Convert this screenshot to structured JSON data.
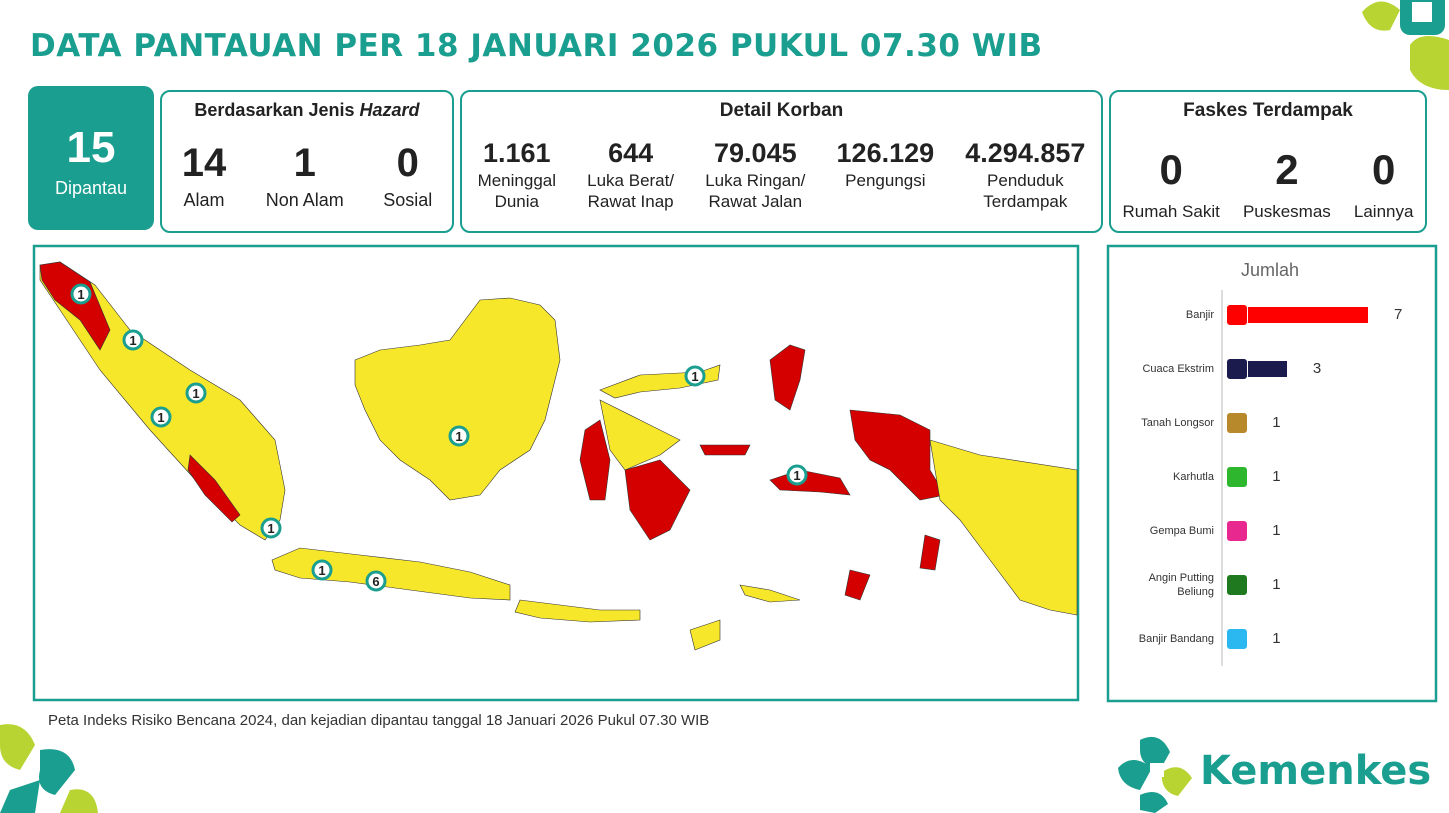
{
  "header": {
    "title": "DATA PANTAUAN PER 18 JANUARI 2026 PUKUL 07.30 WIB"
  },
  "monitored": {
    "value": 15,
    "label": "Dipantau"
  },
  "hazard": {
    "title_prefix": "Berdasarkan Jenis",
    "title_emphasis": "Hazard",
    "items": [
      {
        "value": 14,
        "label": "Alam"
      },
      {
        "value": 1,
        "label": "Non Alam"
      },
      {
        "value": 0,
        "label": "Sosial"
      }
    ]
  },
  "casualties": {
    "title": "Detail Korban",
    "items": [
      {
        "value": "1.161",
        "label_lines": [
          "Meninggal",
          "Dunia"
        ]
      },
      {
        "value": "644",
        "label_lines": [
          "Luka Berat/",
          "Rawat Inap"
        ]
      },
      {
        "value": "79.045",
        "label_lines": [
          "Luka Ringan/",
          "Rawat Jalan"
        ]
      },
      {
        "value": "126.129",
        "label_lines": [
          "Pengungsi"
        ]
      },
      {
        "value": "4.294.857",
        "label_lines": [
          "Penduduk",
          "Terdampak"
        ]
      }
    ]
  },
  "facilities": {
    "title": "Faskes Terdampak",
    "items": [
      {
        "value": 0,
        "label": "Rumah Sakit"
      },
      {
        "value": 2,
        "label": "Puskesmas"
      },
      {
        "value": 0,
        "label": "Lainnya"
      }
    ]
  },
  "map": {
    "markers": [
      1,
      1,
      1,
      1,
      1,
      1,
      1,
      1,
      1,
      6
    ]
  },
  "chart_data": {
    "type": "bar",
    "orientation": "horizontal",
    "title": "Jumlah",
    "categories": [
      "Banjir",
      "Cuaca Ekstrim",
      "Tanah Longsor",
      "Karhutla",
      "Gempa Bumi",
      "Angin Putting Beliung",
      "Banjir Bandang"
    ],
    "values": [
      7,
      3,
      1,
      1,
      1,
      1,
      1
    ],
    "colors": [
      "#ff0000",
      "#1b1b4d",
      "#b8892a",
      "#2fb62f",
      "#e8288f",
      "#1f7a1f",
      "#2bb7f0"
    ],
    "xlim": [
      0,
      7
    ]
  },
  "footer": {
    "note": "Peta Indeks Risiko Bencana 2024, dan kejadian dipantau tanggal 18 Januari 2026 Pukul 07.30 WIB"
  },
  "logo": {
    "text": "Kemenkes"
  }
}
